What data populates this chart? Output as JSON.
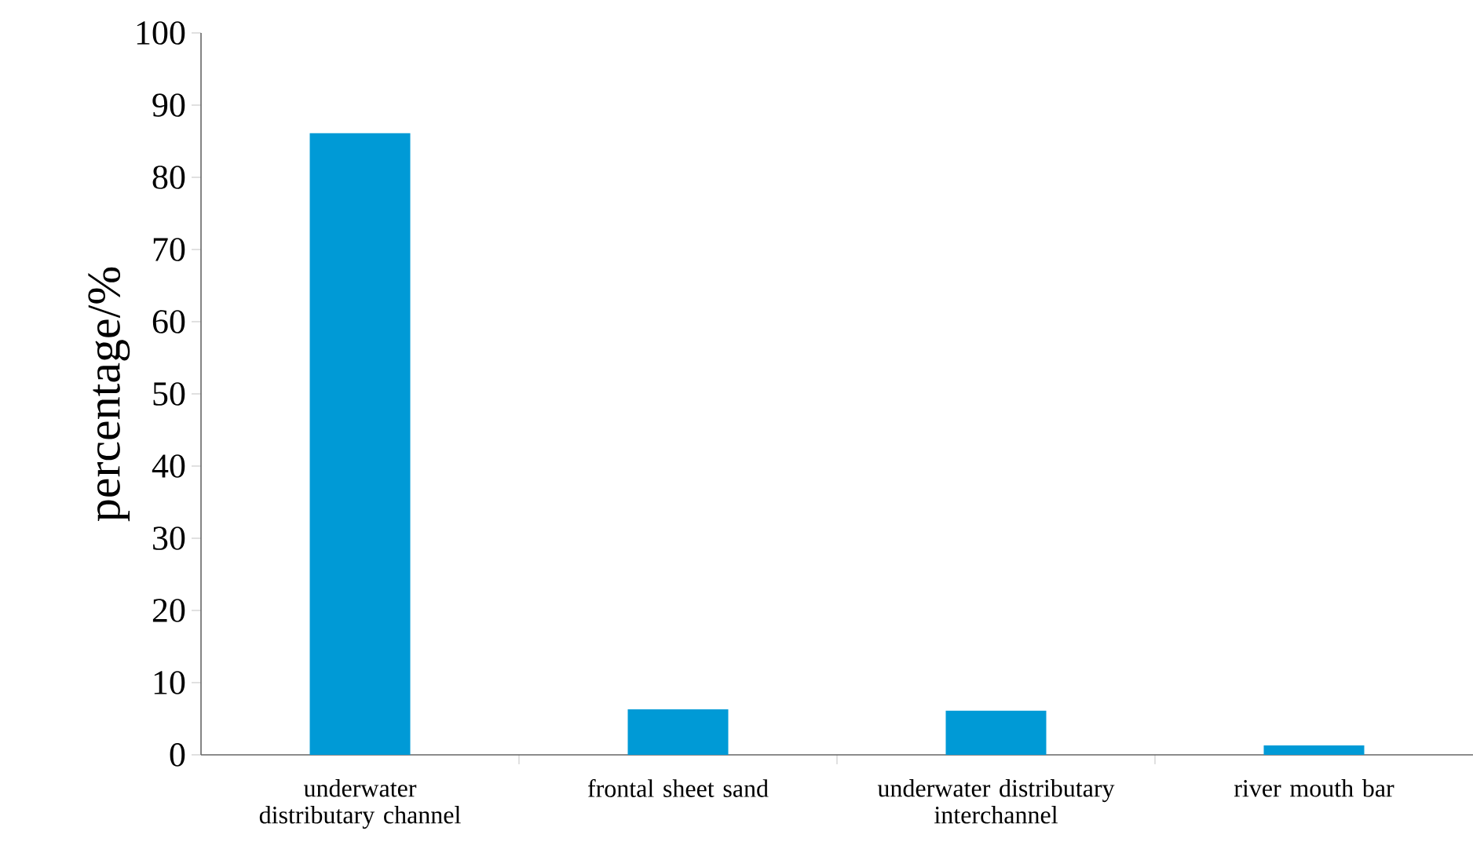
{
  "chart_data": {
    "type": "bar",
    "ylabel": "percentage/%",
    "categories": [
      "underwater distributary channel",
      "frontal sheet sand",
      "underwater distributary interchannel",
      "river mouth bar"
    ],
    "values": [
      86.1,
      6.3,
      6.1,
      1.3
    ],
    "color": "#009ad6",
    "ylim": [
      0,
      100
    ],
    "yticks": [
      0,
      10,
      20,
      30,
      40,
      50,
      60,
      70,
      80,
      90,
      100
    ]
  }
}
